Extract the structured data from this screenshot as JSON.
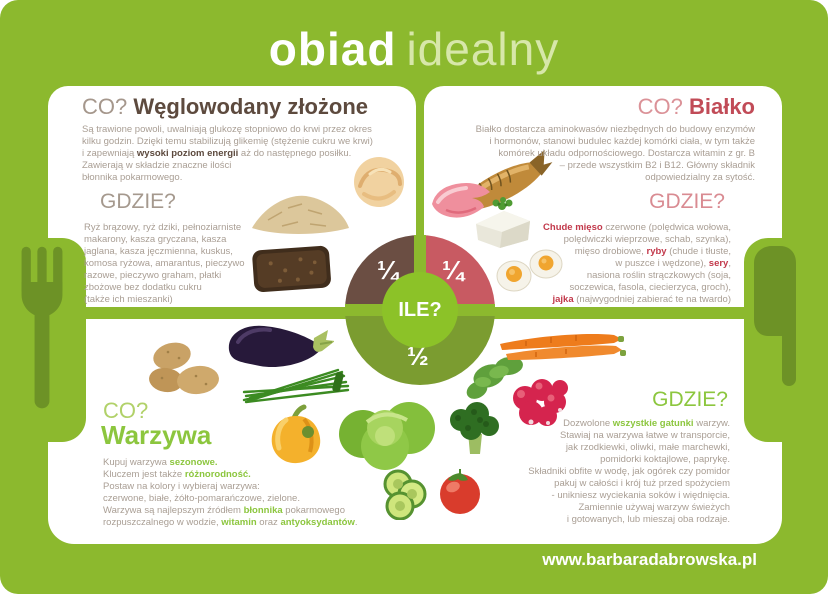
{
  "title": {
    "word_bold": "obiad",
    "word_light": "idealny"
  },
  "plate": {
    "question": "ILE?",
    "fraction_carbs": "¼",
    "fraction_protein": "¼",
    "fraction_veggies": "½"
  },
  "sections": {
    "carbs": {
      "question": "CO?",
      "name": "Węglowodany złożone",
      "intro": [
        {
          "t": "Są trawione powoli, uwalniają glukozę stopniowo do krwi przez okres\nkilku godzin. Dzięki temu stabilizują glikemię (stężenie cukru we krwi)\ni zapewniają "
        },
        {
          "t": "wysoki poziom energii",
          "b": true
        },
        {
          "t": " aż do następnego posiłku.\nZawierają w składzie znaczne ilości\nbłonnika pokarmowego."
        }
      ],
      "where_label": "GDZIE?",
      "where": [
        {
          "t": "Ryż brązowy, ryż dziki, pełnoziarniste\nmakarony, kasza gryczana, kasza\njaglana, kasza jęczmienna, kuskus,\nkomosa ryżowa, amarantus, pieczywo\nrazowe, pieczywo graham, płatki\nzbożowe bez dodatku cukru\n(także ich mieszanki)"
        }
      ]
    },
    "protein": {
      "question": "CO?",
      "name": "Białko",
      "intro": [
        {
          "t": "Białko dostarcza aminokwasów niezbędnych do budowy enzymów\ni hormonów, stanowi budulec każdej komórki ciała, w tym także\nkomórek układu odpornościowego. Dostarcza witamin z gr. B\n– przede wszystkim B2 i B12. Główny składnik\nodpowiedzialny za sytość."
        }
      ],
      "where_label": "GDZIE?",
      "where": [
        {
          "t": "Chude mięso",
          "b": true
        },
        {
          "t": " czerwone (polędwica wołowa,\npolędwiczki wieprzowe, schab, szynka),\nmięso drobiowe, "
        },
        {
          "t": "ryby",
          "b": true
        },
        {
          "t": " (chude i tłuste,\nw puszce i wędzone), "
        },
        {
          "t": "sery",
          "b": true
        },
        {
          "t": ",\nnasiona roślin strączkowych (soja,\nsoczewica, fasola, ciecierzyca, groch),\n"
        },
        {
          "t": "jajka",
          "b": true
        },
        {
          "t": " (najwygodniej zabierać te na twardo)"
        }
      ]
    },
    "veggies": {
      "question": "CO?",
      "name": "Warzywa",
      "intro": [
        {
          "t": "Kupuj warzywa "
        },
        {
          "t": "sezonowe.",
          "b": true
        },
        {
          "t": "\nKluczem jest także "
        },
        {
          "t": "różnorodność.",
          "b": true
        },
        {
          "t": "\nPostaw na kolory i wybieraj warzywa:\nczerwone, białe, żółto-pomarańczowe, zielone.\nWarzywa są najlepszym źródłem "
        },
        {
          "t": "błonnika",
          "b": true
        },
        {
          "t": " pokarmowego\nrozpuszczalnego w wodzie, "
        },
        {
          "t": "witamin",
          "b": true
        },
        {
          "t": " oraz "
        },
        {
          "t": "antyoksydantów",
          "b": true
        },
        {
          "t": "."
        }
      ],
      "where_label": "GDZIE?",
      "where": [
        {
          "t": "Dozwolone "
        },
        {
          "t": "wszystkie gatunki",
          "b": true
        },
        {
          "t": " warzyw.\nStawiaj na warzywa łatwe w transporcie,\njak rzodkiewki, oliwki, małe marchewki,\npomidorki koktajlowe, paprykę.\nSkładniki obfite w wodę, jak ogórek czy pomidor\npakuj w całości i krój tuż przed spożyciem\n- unikniesz wyciekania soków i więdnięcia.\nZamiennie używaj warzyw świeżych\ni gotowanych, lub mieszaj oba rodzaje."
        }
      ]
    }
  },
  "footer": {
    "website": "www.barbaradabrowska.pl"
  },
  "photos": {
    "carbs": [
      "brown-rice",
      "pasta-nest",
      "wholegrain-bread"
    ],
    "protein": [
      "smoked-fish",
      "ham-slices",
      "white-cheese",
      "boiled-eggs"
    ],
    "veggies": [
      "potatoes",
      "eggplant",
      "chives",
      "yellow-pepper",
      "lettuce",
      "cucumber-slices",
      "broccoli",
      "tomato",
      "radishes",
      "carrots"
    ]
  },
  "cutlery": [
    "fork",
    "knife"
  ],
  "colors": {
    "background_green": "#8cb92e",
    "cutlery_green": "#6d9226",
    "carbs_brown": "#5d4a3e",
    "protein_red": "#c14b57",
    "veggies_green": "#8cc63e",
    "plate_carbs": "#6b4e43",
    "plate_protein": "#c85a62",
    "plate_veggies": "#7b9c30",
    "plate_hub": "#8cc228"
  }
}
